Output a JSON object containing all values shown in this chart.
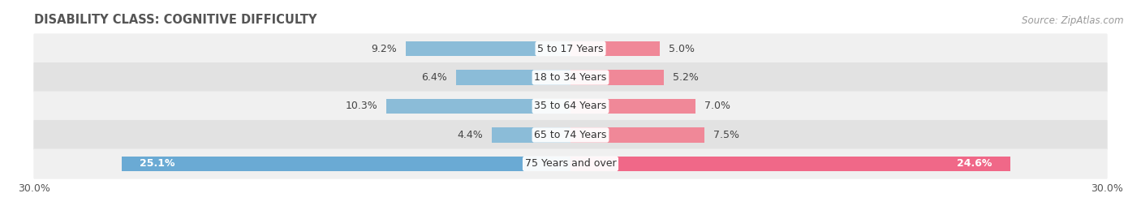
{
  "title": "DISABILITY CLASS: COGNITIVE DIFFICULTY",
  "source": "Source: ZipAtlas.com",
  "categories": [
    "5 to 17 Years",
    "18 to 34 Years",
    "35 to 64 Years",
    "65 to 74 Years",
    "75 Years and over"
  ],
  "male_values": [
    9.2,
    6.4,
    10.3,
    4.4,
    25.1
  ],
  "female_values": [
    5.0,
    5.2,
    7.0,
    7.5,
    24.6
  ],
  "max_val": 30.0,
  "male_color_light": "#a8c8e8",
  "male_color_dark": "#6aaad4",
  "female_color_light": "#f4a0b0",
  "female_color_dark": "#f06080",
  "male_color": "#8bbcd8",
  "female_color": "#f08898",
  "male_color_last": "#6aaad4",
  "female_color_last": "#f06888",
  "bar_height": 0.52,
  "row_bg_light": "#f0f0f0",
  "row_bg_dark": "#e2e2e2",
  "label_fontsize": 9.0,
  "title_fontsize": 10.5,
  "source_fontsize": 8.5,
  "axis_label_fontsize": 9,
  "legend_fontsize": 9,
  "xlim": [
    -30,
    30
  ]
}
